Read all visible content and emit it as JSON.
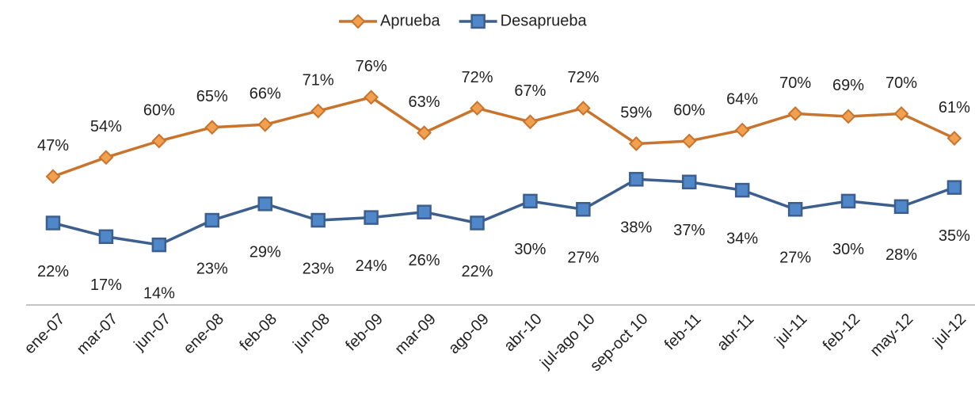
{
  "chart_data": {
    "type": "line",
    "categories": [
      "ene-07",
      "mar-07",
      "jun-07",
      "ene-08",
      "feb-08",
      "jun-08",
      "feb-09",
      "mar-09",
      "ago-09",
      "abr-10",
      "jul-ago 10",
      "sep-oct 10",
      "feb-11",
      "abr-11",
      "jul-11",
      "feb-12",
      "may-12",
      "jul-12"
    ],
    "ylim": [
      0,
      100
    ],
    "y2lim": [
      -8,
      92
    ],
    "legend": "top",
    "series": [
      {
        "name": "Aprueba",
        "color": "#c8742c",
        "marker_color": "#f0a04e",
        "marker": "diamond",
        "values": [
          47,
          54,
          60,
          65,
          66,
          71,
          76,
          63,
          72,
          67,
          72,
          59,
          60,
          64,
          70,
          69,
          70,
          61
        ],
        "value_labels": [
          "47%",
          "54%",
          "60%",
          "65%",
          "66%",
          "71%",
          "76%",
          "63%",
          "72%",
          "67%",
          "72%",
          "59%",
          "60%",
          "64%",
          "70%",
          "69%",
          "70%",
          "61%"
        ]
      },
      {
        "name": "Desaprueba",
        "color": "#3c5f8e",
        "marker_color": "#4f87c8",
        "marker": "square",
        "axis": "y2",
        "values": [
          22,
          17,
          14,
          23,
          29,
          23,
          24,
          26,
          22,
          30,
          27,
          38,
          37,
          34,
          27,
          30,
          28,
          35
        ],
        "value_labels": [
          "22%",
          "17%",
          "14%",
          "23%",
          "29%",
          "23%",
          "24%",
          "26%",
          "22%",
          "30%",
          "27%",
          "38%",
          "37%",
          "34%",
          "27%",
          "30%",
          "28%",
          "35%"
        ]
      }
    ]
  }
}
